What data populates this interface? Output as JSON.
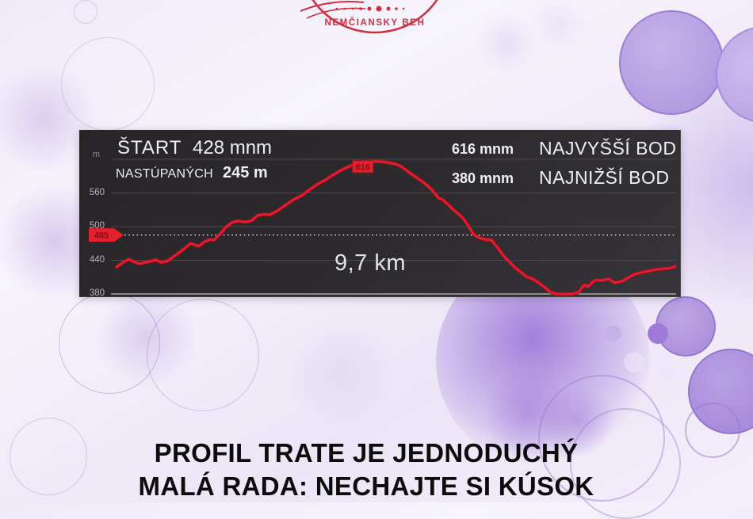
{
  "theme": {
    "accent_red": "#cf3140",
    "line_red": "#ea1b2e",
    "line_red_dark": "#9e1420",
    "marker_red": "#e3202c",
    "marker_text_red": "#7e1016",
    "panel_bg": "#2c2a2e",
    "gridline": "#4c4a4e",
    "baseline": "#a9a7ac"
  },
  "logo": {
    "title": "NEMČIANSKY BEH"
  },
  "panel": {
    "start_label": "ŠTART",
    "start_value": "428 mnm",
    "climb_label": "NASTÚPANÝCH",
    "climb_value": "245 m",
    "high_value": "616 mnm",
    "high_label": "NAJVYŠŠÍ BOD",
    "low_value": "380 mnm",
    "low_label": "NAJNIŽŠÍ BOD"
  },
  "caption": {
    "line1": "PROFIL TRATE JE JEDNODUCHÝ",
    "line2": "MALÁ RADA: NECHAJTE SI KÚSOK"
  },
  "chart_data": {
    "type": "line",
    "x_unit": "km",
    "y_unit": "mnm",
    "x_range": [
      0,
      9.7
    ],
    "y_axis_unit_label": "m",
    "y_ticks": [
      560,
      500,
      440,
      380
    ],
    "y_gridlines": [
      620,
      560,
      500,
      440,
      380
    ],
    "distance_label": "9,7 km",
    "start_elevation_mnm": 428,
    "climb_total_m": 245,
    "max_elevation_mnm": 616,
    "min_elevation_mnm": 380,
    "cursor_elevation_mnm": 485,
    "peak_label": "616",
    "cursor_label": "485",
    "legend": "none",
    "grid": true,
    "profile_km_elevation": [
      [
        0,
        428
      ],
      [
        0.11,
        436
      ],
      [
        0.21,
        442
      ],
      [
        0.29,
        438
      ],
      [
        0.39,
        434
      ],
      [
        0.5,
        436
      ],
      [
        0.62,
        439
      ],
      [
        0.69,
        441
      ],
      [
        0.77,
        436
      ],
      [
        0.89,
        439
      ],
      [
        1.05,
        451
      ],
      [
        1.17,
        460
      ],
      [
        1.28,
        470
      ],
      [
        1.35,
        468
      ],
      [
        1.42,
        465
      ],
      [
        1.53,
        473
      ],
      [
        1.62,
        477
      ],
      [
        1.69,
        476
      ],
      [
        1.8,
        487
      ],
      [
        1.9,
        499
      ],
      [
        2.0,
        507
      ],
      [
        2.1,
        510
      ],
      [
        2.24,
        508
      ],
      [
        2.35,
        511
      ],
      [
        2.45,
        520
      ],
      [
        2.55,
        522
      ],
      [
        2.66,
        521
      ],
      [
        2.79,
        528
      ],
      [
        2.93,
        538
      ],
      [
        3.07,
        548
      ],
      [
        3.21,
        555
      ],
      [
        3.34,
        565
      ],
      [
        3.48,
        575
      ],
      [
        3.62,
        583
      ],
      [
        3.76,
        592
      ],
      [
        3.89,
        600
      ],
      [
        4.03,
        607
      ],
      [
        4.17,
        613
      ],
      [
        4.31,
        615
      ],
      [
        4.44,
        616
      ],
      [
        4.58,
        616
      ],
      [
        4.72,
        614
      ],
      [
        4.86,
        611
      ],
      [
        4.93,
        608
      ],
      [
        5.06,
        598
      ],
      [
        5.2,
        588
      ],
      [
        5.34,
        578
      ],
      [
        5.48,
        565
      ],
      [
        5.59,
        551
      ],
      [
        5.66,
        548
      ],
      [
        5.75,
        540
      ],
      [
        5.85,
        530
      ],
      [
        5.93,
        523
      ],
      [
        6.03,
        513
      ],
      [
        6.12,
        499
      ],
      [
        6.2,
        486
      ],
      [
        6.3,
        480
      ],
      [
        6.4,
        477
      ],
      [
        6.51,
        476
      ],
      [
        6.62,
        462
      ],
      [
        6.71,
        449
      ],
      [
        6.81,
        438
      ],
      [
        6.92,
        427
      ],
      [
        7.03,
        418
      ],
      [
        7.13,
        410
      ],
      [
        7.22,
        407
      ],
      [
        7.33,
        400
      ],
      [
        7.44,
        391
      ],
      [
        7.54,
        383
      ],
      [
        7.64,
        380
      ],
      [
        7.77,
        380
      ],
      [
        7.91,
        380
      ],
      [
        8.02,
        383
      ],
      [
        8.09,
        393
      ],
      [
        8.13,
        396
      ],
      [
        8.19,
        393
      ],
      [
        8.26,
        401
      ],
      [
        8.32,
        405
      ],
      [
        8.41,
        404
      ],
      [
        8.47,
        405
      ],
      [
        8.54,
        407
      ],
      [
        8.6,
        403
      ],
      [
        8.65,
        400
      ],
      [
        8.71,
        401
      ],
      [
        8.78,
        403
      ],
      [
        8.85,
        407
      ],
      [
        8.92,
        411
      ],
      [
        8.99,
        415
      ],
      [
        9.1,
        418
      ],
      [
        9.19,
        420
      ],
      [
        9.29,
        422
      ],
      [
        9.4,
        424
      ],
      [
        9.51,
        425
      ],
      [
        9.61,
        426
      ],
      [
        9.7,
        429
      ]
    ]
  }
}
